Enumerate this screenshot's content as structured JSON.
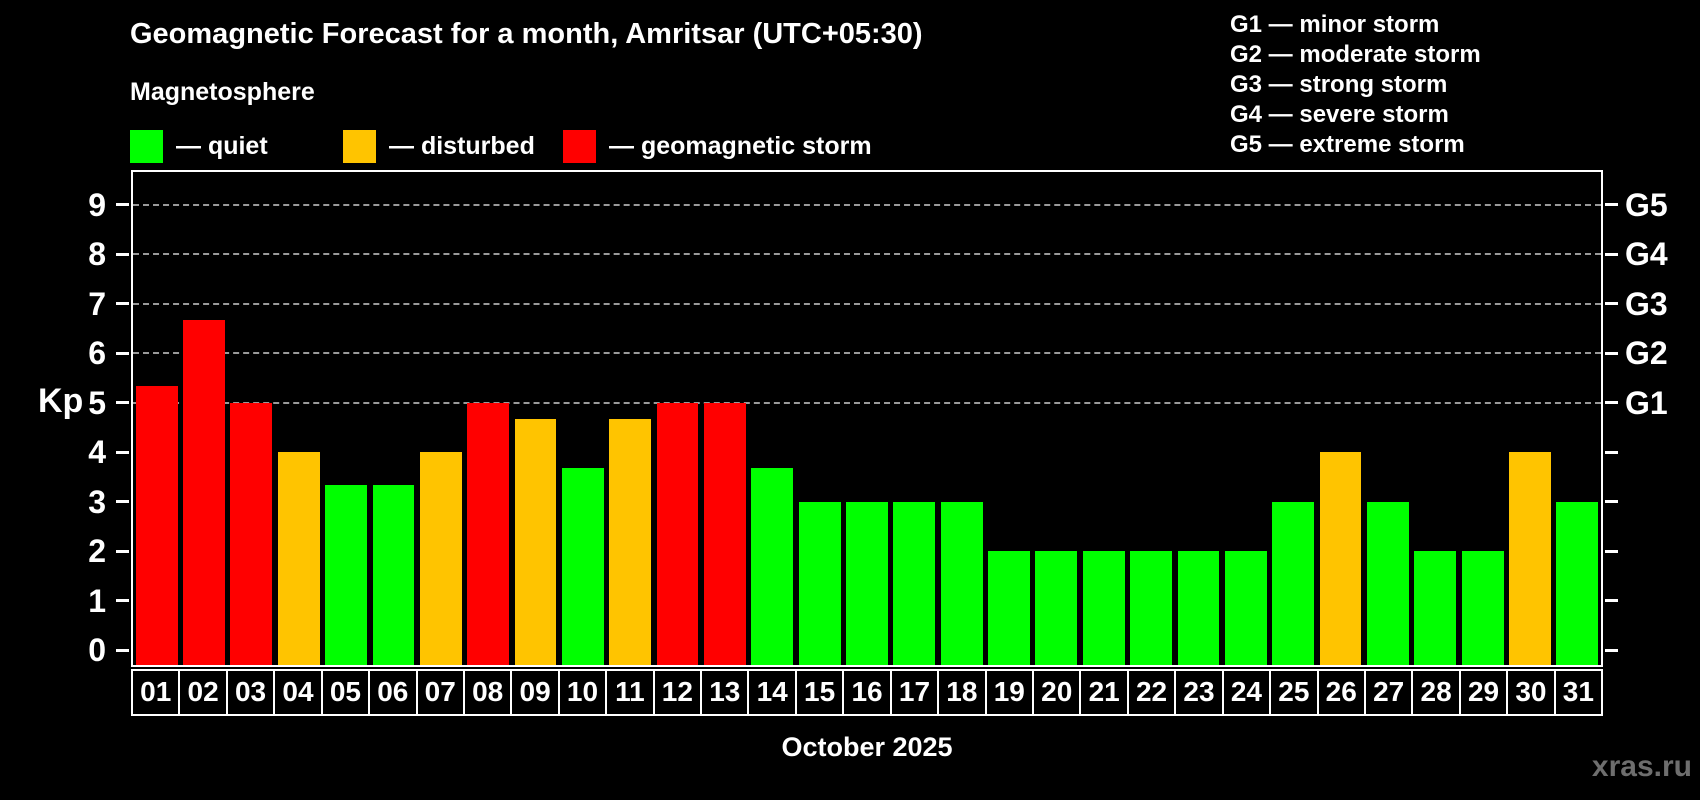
{
  "header": {
    "title": "Geomagnetic Forecast for a month, Amritsar (UTC+05:30)",
    "subtitle": "Magnetosphere"
  },
  "legend": {
    "items": [
      {
        "name": "quiet",
        "label": "— quiet",
        "color": "#00ff00"
      },
      {
        "name": "disturbed",
        "label": "— disturbed",
        "color": "#ffc400"
      },
      {
        "name": "storm",
        "label": "— geomagnetic storm",
        "color": "#ff0000"
      }
    ]
  },
  "storm_scale_legend": {
    "items": [
      "G1 — minor storm",
      "G2 — moderate storm",
      "G3 — strong storm",
      "G4 — severe storm",
      "G5 — extreme storm"
    ]
  },
  "chart_data": {
    "type": "bar",
    "title": "Geomagnetic Forecast for a month, Amritsar (UTC+05:30)",
    "subtitle": "Magnetosphere",
    "xlabel": "October 2025",
    "ylabel": "Kp",
    "ylim": [
      0,
      9
    ],
    "yticks": [
      0,
      1,
      2,
      3,
      4,
      5,
      6,
      7,
      8,
      9
    ],
    "gridlines_at": [
      5,
      6,
      7,
      8,
      9
    ],
    "grid": "dashed horizontal at storm levels only",
    "right_axis_labels": [
      {
        "label": "G1",
        "value": 5
      },
      {
        "label": "G2",
        "value": 6
      },
      {
        "label": "G3",
        "value": 7
      },
      {
        "label": "G4",
        "value": 8
      },
      {
        "label": "G5",
        "value": 9
      }
    ],
    "categories": [
      "01",
      "02",
      "03",
      "04",
      "05",
      "06",
      "07",
      "08",
      "09",
      "10",
      "11",
      "12",
      "13",
      "14",
      "15",
      "16",
      "17",
      "18",
      "19",
      "20",
      "21",
      "22",
      "23",
      "24",
      "25",
      "26",
      "27",
      "28",
      "29",
      "30",
      "31"
    ],
    "values": [
      5.33,
      6.67,
      5,
      4,
      3.33,
      3.33,
      4,
      5,
      4.67,
      3.67,
      4.67,
      5,
      5,
      3.67,
      3,
      3,
      3,
      3,
      2,
      2,
      2,
      2,
      2,
      2,
      3,
      4,
      3,
      2,
      2,
      4,
      3
    ],
    "color_rule": {
      "quiet_if_below": 4,
      "disturbed_if_below": 5,
      "storm_if_at_or_above": 5
    },
    "colors": {
      "quiet": "#00ff00",
      "disturbed": "#ffc400",
      "storm": "#ff0000",
      "background": "#000000",
      "axis": "#ffffff",
      "gridline": "#9a9a9a",
      "watermark": "#6e6e6e"
    }
  },
  "footer": {
    "watermark": "xras.ru"
  }
}
